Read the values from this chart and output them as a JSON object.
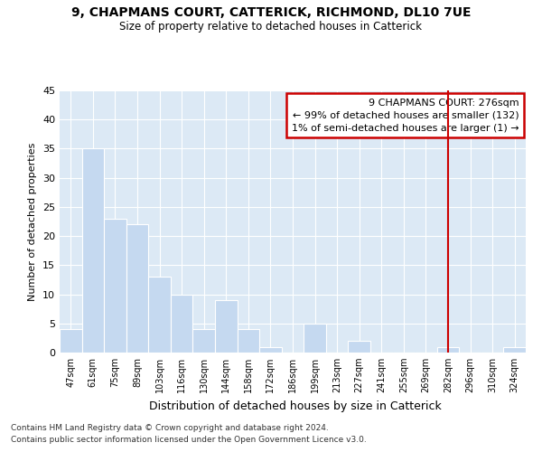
{
  "title1": "9, CHAPMANS COURT, CATTERICK, RICHMOND, DL10 7UE",
  "title2": "Size of property relative to detached houses in Catterick",
  "xlabel": "Distribution of detached houses by size in Catterick",
  "ylabel": "Number of detached properties",
  "categories": [
    "47sqm",
    "61sqm",
    "75sqm",
    "89sqm",
    "103sqm",
    "116sqm",
    "130sqm",
    "144sqm",
    "158sqm",
    "172sqm",
    "186sqm",
    "199sqm",
    "213sqm",
    "227sqm",
    "241sqm",
    "255sqm",
    "269sqm",
    "282sqm",
    "296sqm",
    "310sqm",
    "324sqm"
  ],
  "values": [
    4,
    35,
    23,
    22,
    13,
    10,
    4,
    9,
    4,
    1,
    0,
    5,
    0,
    2,
    0,
    0,
    0,
    1,
    0,
    0,
    1
  ],
  "bar_color": "#c5d9f0",
  "bar_edgecolor": "#ffffff",
  "vline_idx": 17,
  "vline_color": "#cc0000",
  "annotation_line1": "9 CHAPMANS COURT: 276sqm",
  "annotation_line2": "← 99% of detached houses are smaller (132)",
  "annotation_line3": "1% of semi-detached houses are larger (1) →",
  "annotation_box_edgecolor": "#cc0000",
  "ylim": [
    0,
    45
  ],
  "yticks": [
    0,
    5,
    10,
    15,
    20,
    25,
    30,
    35,
    40,
    45
  ],
  "bg_color": "#dce9f5",
  "footnote1": "Contains HM Land Registry data © Crown copyright and database right 2024.",
  "footnote2": "Contains public sector information licensed under the Open Government Licence v3.0."
}
